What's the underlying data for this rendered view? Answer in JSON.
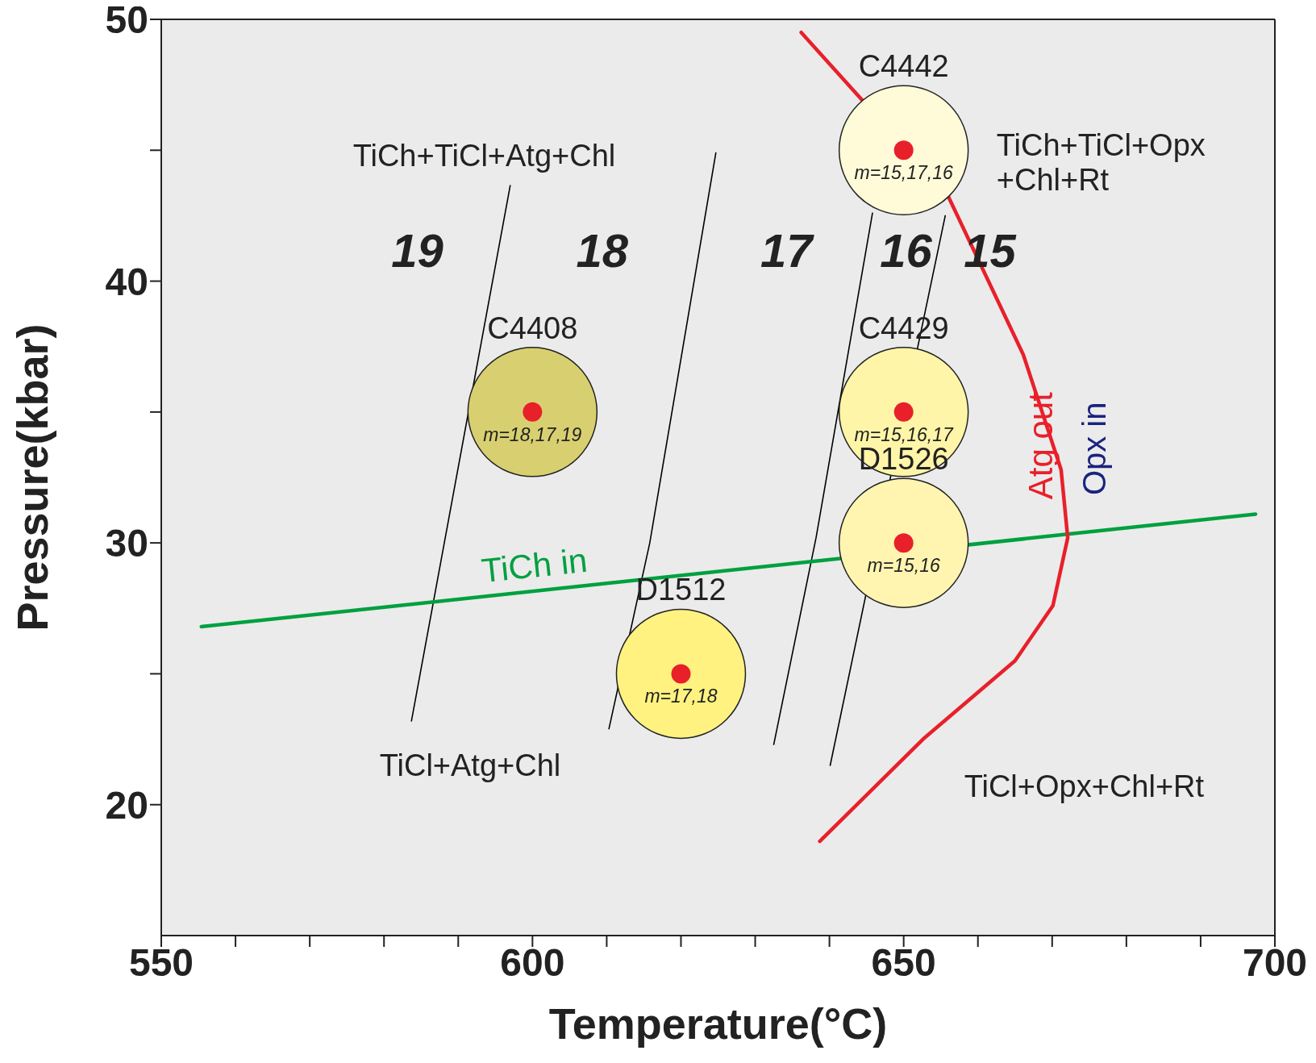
{
  "chart_data": {
    "type": "line",
    "xlabel": "Temperature(°C)",
    "ylabel": "Pressure(kbar)",
    "xlim": [
      550,
      700
    ],
    "ylim": [
      15,
      50
    ],
    "xticks": [
      550,
      {
        "value": 560,
        "label": null
      },
      {
        "value": 570,
        "label": null
      },
      {
        "value": 580,
        "label": null
      },
      {
        "value": 590,
        "label": null
      },
      600,
      {
        "value": 610,
        "label": null
      },
      {
        "value": 620,
        "label": null
      },
      {
        "value": 630,
        "label": null
      },
      {
        "value": 640,
        "label": null
      },
      650,
      {
        "value": 660,
        "label": null
      },
      {
        "value": 670,
        "label": null
      },
      {
        "value": 680,
        "label": null
      },
      {
        "value": 690,
        "label": null
      },
      700
    ],
    "yticks": [
      20,
      {
        "value": 25,
        "label": null
      },
      30,
      {
        "value": 35,
        "label": null
      },
      40,
      {
        "value": 45,
        "label": null
      },
      50
    ],
    "grid": false,
    "legend": false,
    "line_style": "solid",
    "series": [
      {
        "color": "#000000",
        "marker": "none",
        "x": [
          583.7,
          597.0
        ],
        "values": [
          23.2,
          43.65
        ]
      },
      {
        "color": "#000000",
        "marker": "none",
        "x": [
          610.3,
          615.8,
          624.7
        ],
        "values": [
          22.9,
          30.0,
          44.9
        ]
      },
      {
        "color": "#000000",
        "marker": "none",
        "x": [
          632.5,
          638.2,
          645.8
        ],
        "values": [
          22.3,
          30.2,
          42.6
        ]
      },
      {
        "color": "#000000",
        "marker": "none",
        "x": [
          640.1,
          655.6
        ],
        "values": [
          21.5,
          42.5
        ]
      },
      {
        "name": "TiCh in",
        "color": "#00a040",
        "marker": "none",
        "x": [
          555.4,
          697.4
        ],
        "values": [
          26.8,
          31.1
        ]
      },
      {
        "name": "Atg out",
        "color": "#e8202a",
        "marker": "none",
        "x": [
          636.2,
          655.9,
          666.1,
          671.2,
          672.1,
          670.1,
          665.0,
          652.6,
          638.7
        ],
        "values": [
          49.5,
          43.3,
          37.2,
          32.8,
          30.2,
          27.6,
          25.5,
          22.5,
          18.6
        ]
      },
      {
        "type": "scatter",
        "marker": "circle",
        "colors": [
          "#d8d070",
          "#fff280",
          "#fff5a8",
          "#fff5b0",
          "#fffbd8"
        ],
        "x": [
          600,
          620,
          650,
          650,
          650
        ],
        "values": [
          35,
          25,
          35,
          30,
          45
        ],
        "value_labels": [
          "C4408",
          "D1512",
          "C4429",
          "D1526",
          "C4442"
        ]
      },
      {
        "type": "scatter",
        "marker": "circle",
        "color": "#e8202a",
        "x": [
          600,
          620,
          650,
          650,
          650
        ],
        "values": [
          35,
          25,
          35,
          30,
          45
        ]
      }
    ],
    "annotations": [
      "TiCh+TiCl+Atg+Chl",
      "TiCh+TiCl+Opx\n+Chl+Rt",
      "TiCl+Atg+Chl",
      "TiCl+Opx+Chl+Rt",
      "19",
      "18",
      "17",
      "16",
      "15",
      "Opx in",
      {
        "text": "m=18,17,19",
        "x": 600,
        "y": 35
      },
      {
        "text": "m=17,18",
        "x": 620,
        "y": 25
      },
      {
        "text": "m=15,16,17",
        "x": 650,
        "y": 35
      },
      {
        "text": "m=15,16",
        "x": 650,
        "y": 30
      },
      {
        "text": "m=15,17,16",
        "x": 650,
        "y": 45
      }
    ]
  }
}
